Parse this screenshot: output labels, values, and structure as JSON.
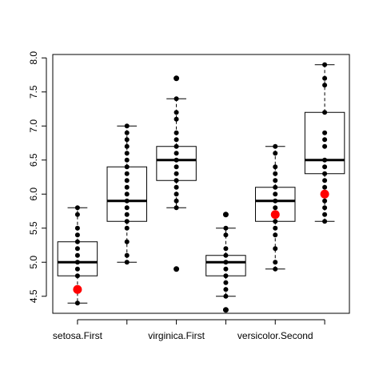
{
  "chart_data": {
    "type": "boxplot",
    "title": "",
    "xlabel": "",
    "ylabel": "",
    "ylim": [
      4.25,
      8.05
    ],
    "yticks": [
      "4.5",
      "5.0",
      "5.5",
      "6.0",
      "6.5",
      "7.0",
      "7.5",
      "8.0"
    ],
    "x_tick_labels": [
      "setosa.First",
      "",
      "virginica.First",
      "",
      "versicolor.Second",
      ""
    ],
    "boxes": [
      {
        "min": 4.4,
        "q1": 4.8,
        "median": 5.0,
        "q3": 5.3,
        "max": 5.8,
        "outliers": []
      },
      {
        "min": 5.0,
        "q1": 5.6,
        "median": 5.9,
        "q3": 6.4,
        "max": 7.0,
        "outliers": []
      },
      {
        "min": 5.8,
        "q1": 6.2,
        "median": 6.5,
        "q3": 6.7,
        "max": 7.4,
        "outliers": [
          4.9,
          7.7
        ]
      },
      {
        "min": 4.5,
        "q1": 4.8,
        "median": 5.0,
        "q3": 5.1,
        "max": 5.5,
        "outliers": [
          4.3,
          5.7
        ]
      },
      {
        "min": 4.9,
        "q1": 5.6,
        "median": 5.9,
        "q3": 6.1,
        "max": 6.7,
        "outliers": []
      },
      {
        "min": 5.6,
        "q1": 6.3,
        "median": 6.5,
        "q3": 7.2,
        "max": 7.9,
        "outliers": []
      }
    ],
    "points": [
      [
        4.4,
        4.6,
        4.8,
        4.9,
        5.0,
        5.1,
        5.2,
        5.3,
        5.4,
        5.5,
        5.7,
        5.8
      ],
      [
        5.0,
        5.1,
        5.3,
        5.5,
        5.6,
        5.7,
        5.8,
        5.9,
        6.0,
        6.1,
        6.2,
        6.3,
        6.4,
        6.5,
        6.6,
        6.7,
        6.8,
        6.9,
        7.0
      ],
      [
        4.9,
        5.8,
        5.9,
        6.0,
        6.1,
        6.2,
        6.3,
        6.4,
        6.5,
        6.6,
        6.7,
        6.8,
        6.9,
        7.1,
        7.2,
        7.4,
        7.7
      ],
      [
        4.3,
        4.5,
        4.6,
        4.7,
        4.8,
        4.9,
        5.0,
        5.1,
        5.2,
        5.4,
        5.5,
        5.7
      ],
      [
        4.9,
        5.0,
        5.2,
        5.4,
        5.5,
        5.6,
        5.7,
        5.8,
        5.9,
        6.0,
        6.1,
        6.2,
        6.3,
        6.4,
        6.6,
        6.7
      ],
      [
        5.6,
        5.7,
        5.8,
        5.9,
        6.0,
        6.1,
        6.2,
        6.3,
        6.4,
        6.5,
        6.7,
        6.8,
        6.9,
        7.2,
        7.6,
        7.7,
        7.9
      ]
    ],
    "highlights": [
      {
        "box": 0,
        "value": 4.6
      },
      {
        "box": 4,
        "value": 5.7
      },
      {
        "box": 5,
        "value": 6.0
      }
    ],
    "grid": false,
    "colors": {
      "point": "#000000",
      "highlight": "#ff0000",
      "box_stroke": "#000000",
      "box_fill": "#ffffff",
      "axis": "#000000"
    }
  }
}
